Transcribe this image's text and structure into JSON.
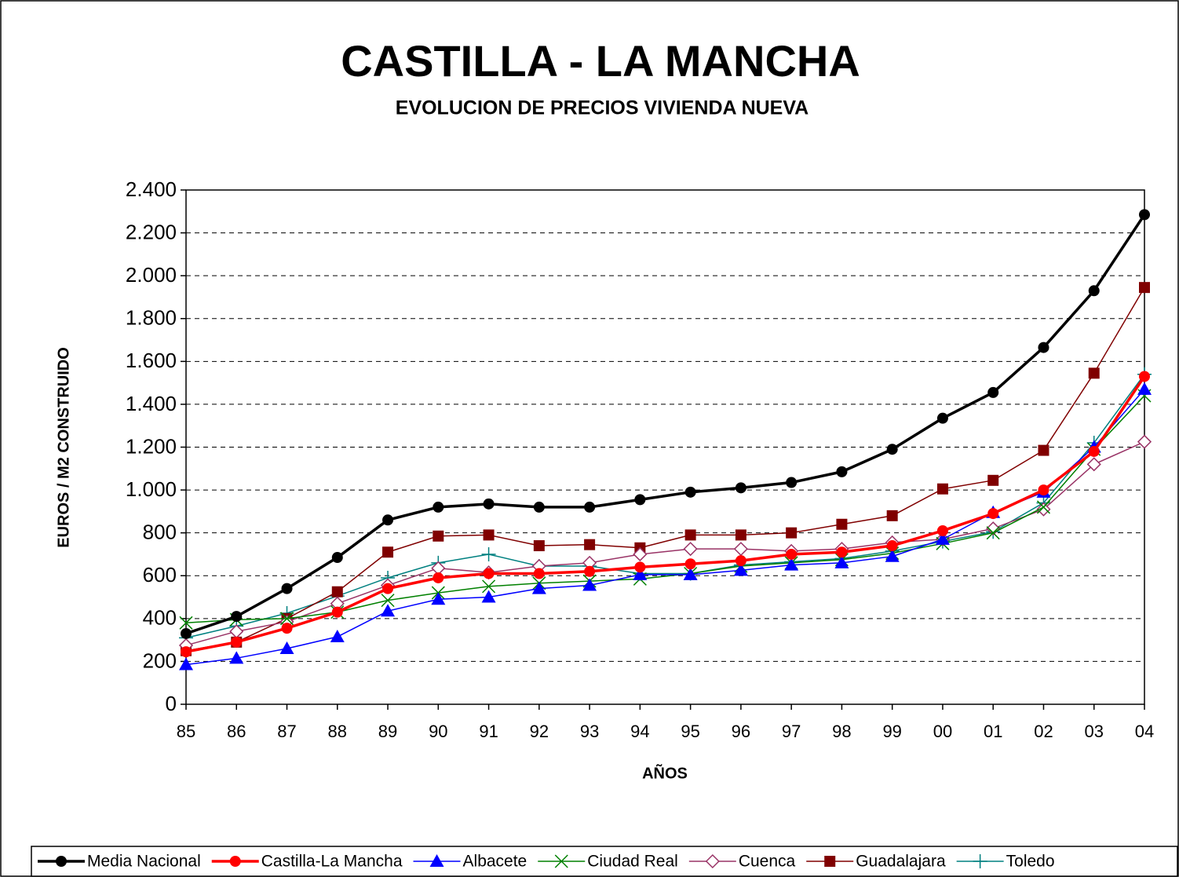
{
  "chart_data": {
    "type": "line",
    "title": "CASTILLA - LA MANCHA",
    "subtitle": "EVOLUCION DE PRECIOS VIVIENDA NUEVA",
    "y_label": "EUROS / M2 CONSTRUIDO",
    "x_label": "AÑOS",
    "categories": [
      "85",
      "86",
      "87",
      "88",
      "89",
      "90",
      "91",
      "92",
      "93",
      "94",
      "95",
      "96",
      "97",
      "98",
      "99",
      "00",
      "01",
      "02",
      "03",
      "04"
    ],
    "ylim": [
      0,
      2400
    ],
    "yticks": [
      0,
      200,
      400,
      600,
      800,
      {
        "value": 1000,
        "label": "1.000"
      },
      {
        "value": 1200,
        "label": "1.200"
      },
      {
        "value": 1400,
        "label": "1.400"
      },
      {
        "value": 1600,
        "label": "1.600"
      },
      {
        "value": 1800,
        "label": "1.800"
      },
      {
        "value": 2000,
        "label": "2.000"
      },
      {
        "value": 2200,
        "label": "2.200"
      },
      {
        "value": 2400,
        "label": "2.400"
      }
    ],
    "grid": true,
    "legend": "bottom",
    "series": [
      {
        "name": "Media Nacional",
        "color": "#000000",
        "marker": "circle",
        "line_width": 3.5,
        "values": [
          330,
          410,
          540,
          685,
          860,
          920,
          935,
          920,
          920,
          955,
          990,
          1010,
          1035,
          1085,
          1190,
          1335,
          1455,
          1665,
          1930,
          2285
        ]
      },
      {
        "name": "Castilla-La Mancha",
        "color": "#ff0000",
        "marker": "circle",
        "line_width": 3.5,
        "values": [
          245,
          290,
          355,
          430,
          540,
          590,
          610,
          610,
          620,
          640,
          655,
          670,
          700,
          710,
          740,
          810,
          890,
          1000,
          1180,
          1530
        ]
      },
      {
        "name": "Albacete",
        "color": "#0000ff",
        "marker": "triangle",
        "line_width": 1.5,
        "values": [
          185,
          215,
          260,
          315,
          435,
          490,
          500,
          540,
          555,
          605,
          605,
          625,
          650,
          660,
          690,
          770,
          895,
          990,
          1200,
          1470
        ]
      },
      {
        "name": "Ciudad Real",
        "color": "#008000",
        "marker": "x",
        "line_width": 1.5,
        "values": [
          380,
          395,
          400,
          430,
          485,
          520,
          550,
          565,
          575,
          585,
          610,
          645,
          660,
          675,
          705,
          750,
          800,
          920,
          1190,
          1440
        ]
      },
      {
        "name": "Cuenca",
        "color": "#993366",
        "marker": "diamond",
        "line_width": 1.5,
        "values": [
          275,
          340,
          385,
          470,
          555,
          635,
          615,
          645,
          660,
          700,
          725,
          725,
          715,
          725,
          755,
          770,
          820,
          910,
          1120,
          1225
        ]
      },
      {
        "name": "Guadalajara",
        "color": "#800000",
        "marker": "square",
        "line_width": 1.5,
        "values": [
          250,
          290,
          400,
          525,
          710,
          785,
          790,
          740,
          745,
          730,
          790,
          790,
          800,
          840,
          880,
          1005,
          1045,
          1185,
          1545,
          1945
        ]
      },
      {
        "name": "Toledo",
        "color": "#008080",
        "marker": "plus",
        "line_width": 1.5,
        "values": [
          310,
          365,
          425,
          505,
          590,
          660,
          700,
          645,
          645,
          610,
          610,
          650,
          665,
          680,
          715,
          760,
          805,
          940,
          1220,
          1540
        ]
      }
    ]
  }
}
